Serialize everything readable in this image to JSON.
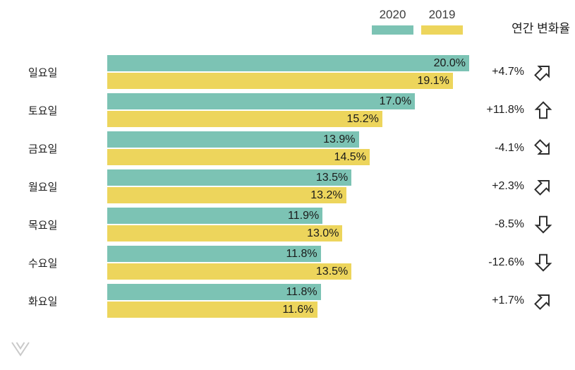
{
  "legend": {
    "items": [
      {
        "label": "2020",
        "color": "#7cc3b4"
      },
      {
        "label": "2019",
        "color": "#edd55c"
      }
    ]
  },
  "header": {
    "change_column_label": "연간 변화율"
  },
  "chart_data": {
    "type": "bar",
    "orientation": "horizontal",
    "value_unit": "%",
    "xlim": [
      0,
      20
    ],
    "grid": false,
    "legend_position": "top-right",
    "categories": [
      "일요일",
      "토요일",
      "금요일",
      "월요일",
      "목요일",
      "수요일",
      "화요일"
    ],
    "series": [
      {
        "name": "2020",
        "values": [
          20.0,
          17.0,
          13.9,
          13.5,
          11.9,
          11.8,
          11.8
        ]
      },
      {
        "name": "2019",
        "values": [
          19.1,
          15.2,
          14.5,
          13.2,
          13.0,
          13.5,
          11.6
        ]
      }
    ],
    "colors": {
      "2020": "#7cc3b4",
      "2019": "#edd55c"
    },
    "rows": [
      {
        "day": "일요일",
        "v2020": 20.0,
        "v2019": 19.1,
        "label2020": "20.0%",
        "label2019": "19.1%",
        "change": "+4.7%",
        "arrow": "up-right"
      },
      {
        "day": "토요일",
        "v2020": 17.0,
        "v2019": 15.2,
        "label2020": "17.0%",
        "label2019": "15.2%",
        "change": "+11.8%",
        "arrow": "up"
      },
      {
        "day": "금요일",
        "v2020": 13.9,
        "v2019": 14.5,
        "label2020": "13.9%",
        "label2019": "14.5%",
        "change": "-4.1%",
        "arrow": "down-right"
      },
      {
        "day": "월요일",
        "v2020": 13.5,
        "v2019": 13.2,
        "label2020": "13.5%",
        "label2019": "13.2%",
        "change": "+2.3%",
        "arrow": "up-right"
      },
      {
        "day": "목요일",
        "v2020": 11.9,
        "v2019": 13.0,
        "label2020": "11.9%",
        "label2019": "13.0%",
        "change": "-8.5%",
        "arrow": "down"
      },
      {
        "day": "수요일",
        "v2020": 11.8,
        "v2019": 13.5,
        "label2020": "11.8%",
        "label2019": "13.5%",
        "change": "-12.6%",
        "arrow": "down"
      },
      {
        "day": "화요일",
        "v2020": 11.8,
        "v2019": 11.6,
        "label2020": "11.8%",
        "label2019": "11.6%",
        "change": "+1.7%",
        "arrow": "up-right"
      }
    ]
  },
  "footer": {
    "logo_icon": "chevron-v-logo"
  }
}
